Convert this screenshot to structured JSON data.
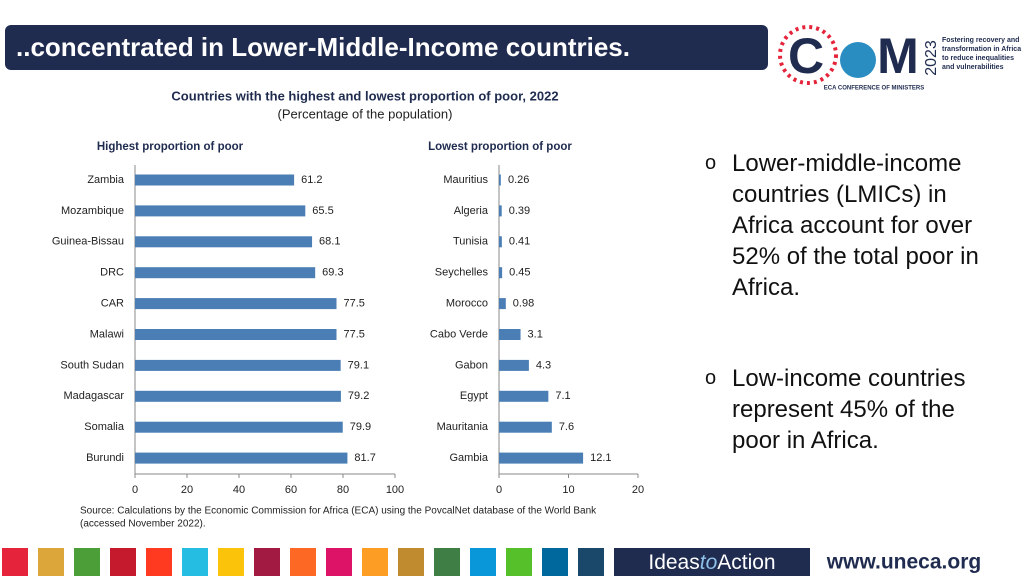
{
  "header": {
    "title": "..concentrated in Lower-Middle-Income countries."
  },
  "logo": {
    "left": "C",
    "right": "M",
    "year": "2023",
    "tagline": [
      "Fostering recovery and",
      "transformation in Africa",
      "to reduce inequalities",
      "and vulnerabilities"
    ],
    "caption": "ECA CONFERENCE OF MINISTERS"
  },
  "figure": {
    "title": "Countries with the highest and lowest proportion of poor, 2022",
    "subtitle": "(Percentage of the population)",
    "source": [
      "Source: Calculations by the Economic Commission for Africa (ECA) using the PovcalNet database of the World Bank",
      "(accessed November 2022)."
    ]
  },
  "chart_data": [
    {
      "type": "bar",
      "orientation": "horizontal",
      "title": "Highest proportion of poor",
      "categories": [
        "Zambia",
        "Mozambique",
        "Guinea-Bissau",
        "DRC",
        "CAR",
        "Malawi",
        "South Sudan",
        "Madagascar",
        "Somalia",
        "Burundi"
      ],
      "values": [
        61.2,
        65.5,
        68.1,
        69.3,
        77.5,
        77.5,
        79.1,
        79.2,
        79.9,
        81.7
      ],
      "color": "#4a7eb5",
      "xlim": [
        0,
        100
      ],
      "xticks": [
        0,
        20,
        40,
        60,
        80,
        100
      ]
    },
    {
      "type": "bar",
      "orientation": "horizontal",
      "title": "Lowest proportion of poor",
      "categories": [
        "Mauritius",
        "Algeria",
        "Tunisia",
        "Seychelles",
        "Morocco",
        "Cabo Verde",
        "Gabon",
        "Egypt",
        "Mauritania",
        "Gambia"
      ],
      "values": [
        0.26,
        0.39,
        0.41,
        0.45,
        0.98,
        3.1,
        4.3,
        7.1,
        7.6,
        12.1
      ],
      "color": "#4a7eb5",
      "xlim": [
        0,
        20
      ],
      "xticks": [
        0,
        10,
        20
      ]
    }
  ],
  "bullets": [
    "Lower-middle-income countries (LMICs) in Africa account for over 52% of the total poor in Africa.",
    "Low-income countries represent 45% of the poor in Africa."
  ],
  "footer": {
    "brand": [
      "Ideas",
      "to",
      "Action"
    ],
    "url": "www.uneca.org"
  }
}
